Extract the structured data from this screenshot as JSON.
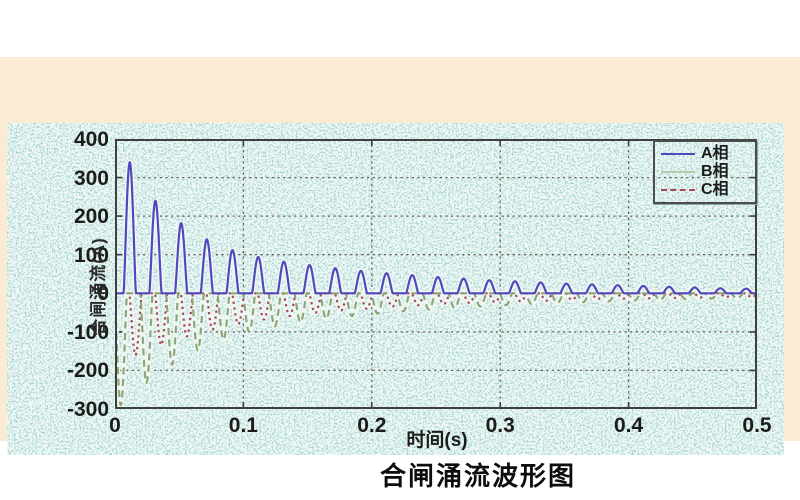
{
  "figure": {
    "frame_color": "#fcebd4",
    "plot_background_color": "#a6d5d0",
    "grid_color": "#564a42",
    "axis_color": "#3f3f3f",
    "tick_label_color": "#1c1c1c"
  },
  "chart_data": {
    "type": "line",
    "title": "合闸涌流波形图",
    "xlabel": "时间(s)",
    "ylabel": "合闸涌流(A)",
    "xlim": [
      0,
      0.5
    ],
    "ylim": [
      -300,
      400
    ],
    "x_tick_labels": [
      "0",
      "0.1",
      "0.2",
      "0.3",
      "0.4",
      "0.5"
    ],
    "y_tick_labels": [
      "400",
      "300",
      "200",
      "100",
      "0",
      "-100",
      "-200",
      "-300"
    ],
    "grid": "dashed, on",
    "legend_position": "top-right",
    "description": "Decaying 50 Hz transformer closing inrush current pulses for three phases",
    "pulse_period_s": 0.02,
    "pulse_width_s": 0.0095,
    "series": [
      {
        "name": "A相",
        "color": "#4f49bd",
        "style": "solid",
        "pulse_center_first_s": 0.0115,
        "peak_values": [
          340,
          240,
          182,
          140,
          112,
          94,
          82,
          73,
          65,
          58,
          52,
          47,
          42,
          38,
          34,
          31,
          28,
          25,
          23,
          21,
          19,
          17,
          15,
          13,
          12
        ]
      },
      {
        "name": "B相",
        "color": "#8ca678",
        "style": "dashed",
        "pulse_center_first_s": 0.0045,
        "peak_values": [
          -290,
          -232,
          -185,
          -148,
          -120,
          -100,
          -86,
          -75,
          -66,
          -59,
          -53,
          -47,
          -42,
          -38,
          -34,
          -31,
          -28,
          -25,
          -23,
          -21,
          -19,
          -17,
          -15,
          -14,
          -13
        ]
      },
      {
        "name": "C相",
        "color": "#a34a5c",
        "style": "dotted",
        "pulse_center_first_s": 0.016,
        "peak_values": [
          -160,
          -134,
          -112,
          -94,
          -80,
          -68,
          -59,
          -51,
          -45,
          -40,
          -35,
          -31,
          -28,
          -25,
          -23,
          -21,
          -19,
          -17,
          -15,
          -14,
          -13,
          -12,
          -11,
          -10,
          -10
        ]
      }
    ]
  }
}
